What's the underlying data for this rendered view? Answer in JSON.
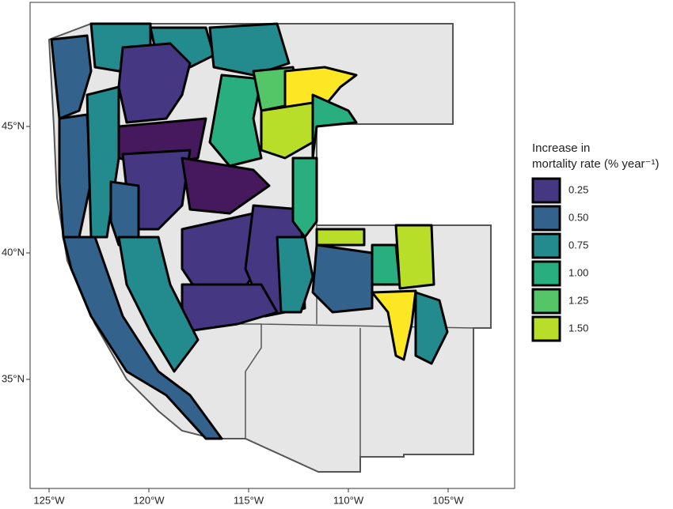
{
  "map": {
    "xticks": [
      {
        "value": -125,
        "label": "125°W"
      },
      {
        "value": -120,
        "label": "120°W"
      },
      {
        "value": -115,
        "label": "115°W"
      },
      {
        "value": -110,
        "label": "110°W"
      },
      {
        "value": -105,
        "label": "105°W"
      }
    ],
    "yticks": [
      {
        "value": 35,
        "label": "35°N"
      },
      {
        "value": 40,
        "label": "40°N"
      },
      {
        "value": 45,
        "label": "45°N"
      }
    ],
    "legend": {
      "title": [
        "Increase in",
        "mortality rate (% year⁻¹)"
      ],
      "entries": [
        {
          "label": "0.25",
          "value": 0.25,
          "color": "#453781"
        },
        {
          "label": "0.50",
          "value": 0.5,
          "color": "#33638d"
        },
        {
          "label": "0.75",
          "value": 0.75,
          "color": "#238a8d"
        },
        {
          "label": "1.00",
          "value": 1.0,
          "color": "#29af7f"
        },
        {
          "label": "1.25",
          "value": 1.25,
          "color": "#55c667"
        },
        {
          "label": "1.50",
          "value": 1.5,
          "color": "#b8de29"
        }
      ]
    },
    "regions": [
      {
        "value": 0.5,
        "color": "#33638d"
      },
      {
        "value": 0.75,
        "color": "#238a8d"
      },
      {
        "value": 0.75,
        "color": "#238a8d"
      },
      {
        "value": 0.25,
        "color": "#453781"
      },
      {
        "value": 0.1,
        "color": "#46195e"
      },
      {
        "value": 0.25,
        "color": "#453781"
      },
      {
        "value": 0.1,
        "color": "#46195e"
      },
      {
        "value": 0.75,
        "color": "#238a8d"
      },
      {
        "value": 1.0,
        "color": "#29af7f"
      },
      {
        "value": 1.25,
        "color": "#55c667"
      },
      {
        "value": 1.75,
        "color": "#fde725"
      },
      {
        "value": 1.5,
        "color": "#b8de29"
      },
      {
        "value": 1.0,
        "color": "#29af7f"
      },
      {
        "value": 0.5,
        "color": "#33638d"
      },
      {
        "value": 0.75,
        "color": "#238a8d"
      },
      {
        "value": 0.5,
        "color": "#33638d"
      },
      {
        "value": 0.25,
        "color": "#453781"
      },
      {
        "value": 0.25,
        "color": "#453781"
      },
      {
        "value": 0.25,
        "color": "#453781"
      },
      {
        "value": 1.0,
        "color": "#29af7f"
      },
      {
        "value": 0.5,
        "color": "#33638d"
      },
      {
        "value": 1.5,
        "color": "#b8de29"
      },
      {
        "value": 1.0,
        "color": "#29af7f"
      },
      {
        "value": 1.5,
        "color": "#b8de29"
      },
      {
        "value": 1.75,
        "color": "#fde725"
      },
      {
        "value": 0.75,
        "color": "#238a8d"
      },
      {
        "value": 0.5,
        "color": "#33638d"
      },
      {
        "value": 0.75,
        "color": "#238a8d"
      },
      {
        "value": 0.75,
        "color": "#238a8d"
      }
    ]
  }
}
